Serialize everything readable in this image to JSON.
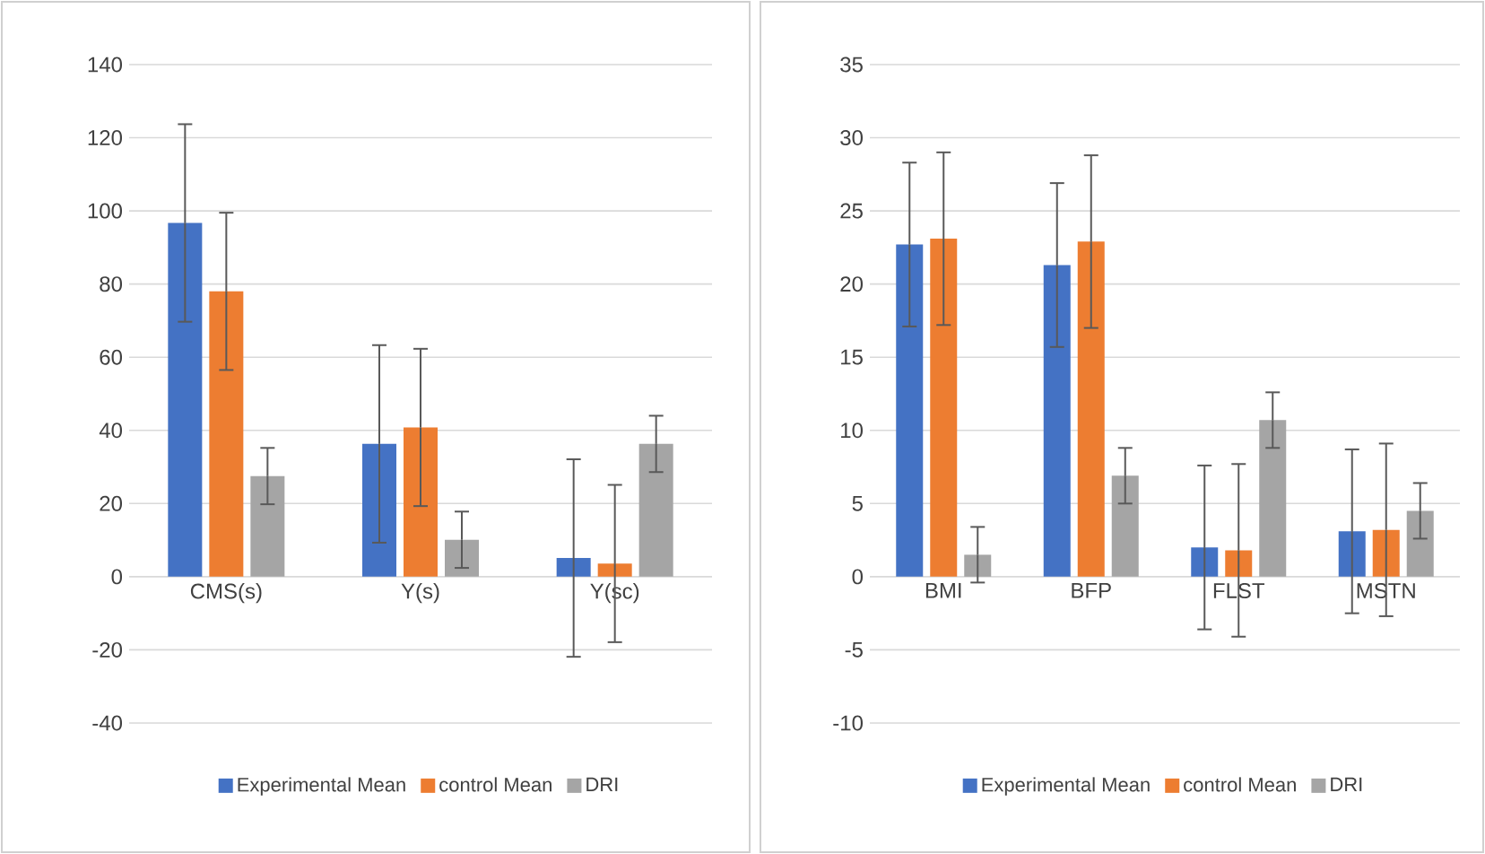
{
  "chart_data": [
    {
      "type": "bar",
      "categories": [
        "CMS(s)",
        "Y(s)",
        "Y(sc)"
      ],
      "series": [
        {
          "name": "Experimental Mean",
          "color": "#4472c4",
          "values": [
            96.7,
            36.3,
            5.1
          ],
          "errors": [
            27,
            27,
            27
          ]
        },
        {
          "name": "control Mean",
          "color": "#ed7d31",
          "values": [
            78,
            40.8,
            3.6
          ],
          "errors": [
            21.5,
            21.5,
            21.5
          ]
        },
        {
          "name": "DRI",
          "color": "#a5a5a5",
          "values": [
            27.5,
            10.1,
            36.3
          ],
          "errors": [
            7.7,
            7.7,
            7.7
          ]
        }
      ],
      "ylim": [
        -40,
        140
      ],
      "yticks": [
        -40,
        -20,
        0,
        20,
        40,
        60,
        80,
        100,
        120,
        140
      ],
      "grid": "y",
      "legend": "bottom"
    },
    {
      "type": "bar",
      "categories": [
        "BMI",
        "BFP",
        "FLST",
        "MSTN"
      ],
      "series": [
        {
          "name": "Experimental Mean",
          "color": "#4472c4",
          "values": [
            22.7,
            21.3,
            2.0,
            3.1
          ],
          "errors": [
            5.6,
            5.6,
            5.6,
            5.6
          ]
        },
        {
          "name": "control Mean",
          "color": "#ed7d31",
          "values": [
            23.1,
            22.9,
            1.8,
            3.2
          ],
          "errors": [
            5.9,
            5.9,
            5.9,
            5.9
          ]
        },
        {
          "name": "DRI",
          "color": "#a5a5a5",
          "values": [
            1.5,
            6.9,
            10.7,
            4.5
          ],
          "errors": [
            1.9,
            1.9,
            1.9,
            1.9
          ]
        }
      ],
      "ylim": [
        -10,
        35
      ],
      "yticks": [
        -10,
        -5,
        0,
        5,
        10,
        15,
        20,
        25,
        30,
        35
      ],
      "grid": "y",
      "legend": "bottom"
    }
  ]
}
